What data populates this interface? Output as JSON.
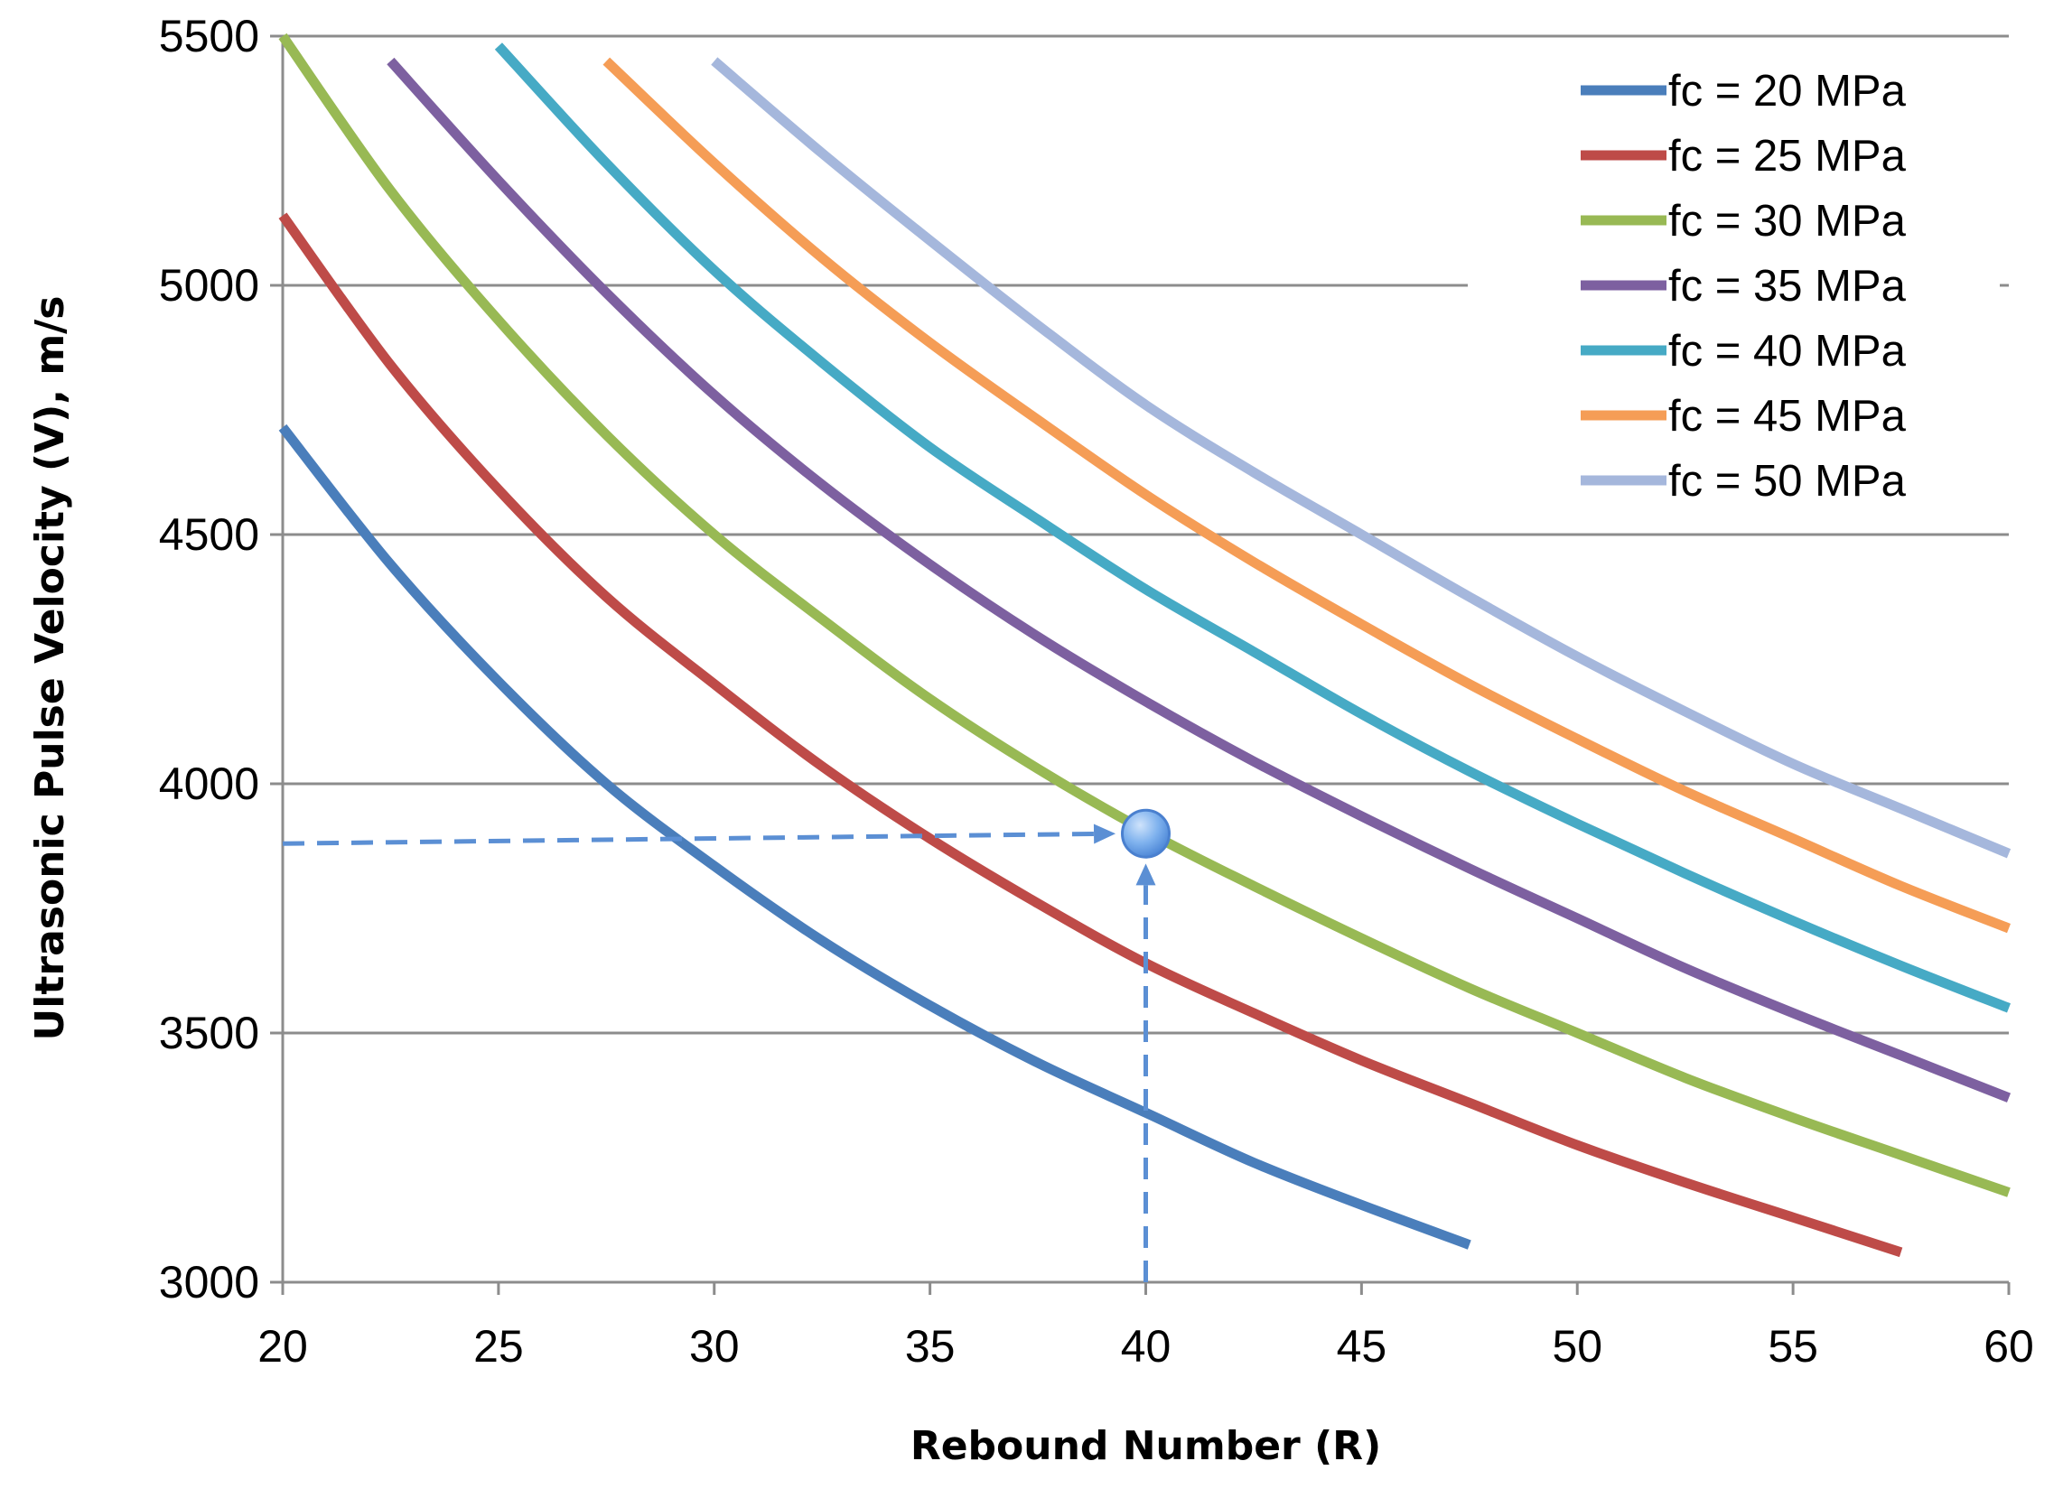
{
  "chart_data": {
    "type": "line",
    "title": "",
    "xlabel": "Rebound Number (R)",
    "ylabel": "Ultrasonic Pulse Velocity (V), m/s",
    "xlim": [
      20,
      60
    ],
    "ylim": [
      3000,
      5500
    ],
    "xticks": [
      20,
      25,
      30,
      35,
      40,
      45,
      50,
      55,
      60
    ],
    "yticks": [
      3000,
      3500,
      4000,
      4500,
      5000,
      5500
    ],
    "x_tick_labels": [
      "20",
      "25",
      "30",
      "35",
      "40",
      "45",
      "50",
      "55",
      "60"
    ],
    "y_tick_labels": [
      "3000",
      "3500",
      "4000",
      "4500",
      "5000",
      "5500"
    ],
    "grid": "horizontal",
    "legend_position": "top-right",
    "x": [
      20,
      22.5,
      25,
      27.5,
      30,
      32.5,
      35,
      37.5,
      40,
      42.5,
      45,
      47.5,
      50,
      52.5,
      55,
      57.5,
      60
    ],
    "series": [
      {
        "name": "fc = 20 MPa",
        "color": "#4a7ebb",
        "values": [
          4715,
          4440,
          4205,
          4000,
          3835,
          3685,
          3555,
          3440,
          3340,
          3240,
          3155,
          3075,
          null,
          null,
          null,
          null,
          null
        ]
      },
      {
        "name": "fc = 25 MPa",
        "color": "#be4b48",
        "values": [
          5140,
          4840,
          4590,
          4375,
          4200,
          4035,
          3890,
          3760,
          3640,
          3540,
          3445,
          3360,
          3275,
          3200,
          3130,
          3060,
          null
        ]
      },
      {
        "name": "fc = 30 MPa",
        "color": "#98b954",
        "values": [
          5500,
          5190,
          4930,
          4700,
          4500,
          4330,
          4170,
          4030,
          3905,
          3795,
          3690,
          3590,
          3500,
          3410,
          3330,
          3255,
          3180
        ]
      },
      {
        "name": "fc = 35 MPa",
        "color": "#7d60a0",
        "values": [
          null,
          5450,
          5210,
          4985,
          4780,
          4600,
          4440,
          4295,
          4165,
          4045,
          3935,
          3830,
          3730,
          3630,
          3540,
          3455,
          3370
        ]
      },
      {
        "name": "fc = 40 MPa",
        "color": "#46aac5",
        "values": [
          null,
          null,
          5480,
          5245,
          5030,
          4845,
          4675,
          4530,
          4390,
          4265,
          4140,
          4025,
          3920,
          3820,
          3725,
          3635,
          3550
        ]
      },
      {
        "name": "fc = 45 MPa",
        "color": "#f59d56",
        "values": [
          null,
          null,
          null,
          5450,
          5245,
          5055,
          4885,
          4730,
          4580,
          4445,
          4320,
          4200,
          4090,
          3985,
          3890,
          3795,
          3710
        ]
      },
      {
        "name": "fc = 50 MPa",
        "color": "#a5b7dc",
        "values": [
          null,
          null,
          null,
          null,
          5450,
          5265,
          5090,
          4920,
          4760,
          4625,
          4500,
          4375,
          4255,
          4145,
          4040,
          3950,
          3860
        ]
      }
    ],
    "annotations": [
      {
        "type": "point",
        "x": 40,
        "y": 3900,
        "color": "#6fa7ea"
      },
      {
        "type": "dashed-arrow",
        "from": [
          20,
          3880
        ],
        "to": [
          39.3,
          3900
        ],
        "color": "#5b8fd4"
      },
      {
        "type": "dashed-arrow",
        "from": [
          40,
          3000
        ],
        "to": [
          40,
          3840
        ],
        "color": "#5b8fd4"
      }
    ]
  }
}
